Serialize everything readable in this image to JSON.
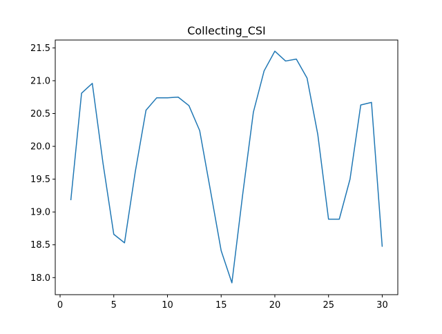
{
  "chart_data": {
    "type": "line",
    "title": "Collecting_CSI",
    "xlabel": "",
    "ylabel": "",
    "grid": false,
    "xlim": [
      -0.45,
      31.45
    ],
    "ylim": [
      17.74,
      21.62
    ],
    "xticks": [
      0,
      5,
      10,
      15,
      20,
      25,
      30
    ],
    "yticks": [
      18.0,
      18.5,
      19.0,
      19.5,
      20.0,
      20.5,
      21.0,
      21.5
    ],
    "xtick_labels": [
      "0",
      "5",
      "10",
      "15",
      "20",
      "25",
      "30"
    ],
    "ytick_labels": [
      "18.0",
      "18.5",
      "19.0",
      "19.5",
      "20.0",
      "20.5",
      "21.0",
      "21.5"
    ],
    "line_color": "#1f77b4",
    "series": [
      {
        "x": [
          1,
          2,
          3,
          4,
          5,
          6,
          7,
          8,
          9,
          10,
          11,
          12,
          13,
          14,
          15,
          16,
          17,
          18,
          19,
          20,
          21,
          22,
          23,
          24,
          25,
          26,
          27,
          28,
          29,
          30
        ],
        "values": [
          19.18,
          20.81,
          20.96,
          19.74,
          18.66,
          18.53,
          19.61,
          20.55,
          20.74,
          20.74,
          20.75,
          20.62,
          20.24,
          19.33,
          18.41,
          17.92,
          19.26,
          20.52,
          21.15,
          21.45,
          21.3,
          21.33,
          21.04,
          20.18,
          18.89,
          18.89,
          19.5,
          20.63,
          20.67,
          18.47
        ]
      }
    ]
  }
}
